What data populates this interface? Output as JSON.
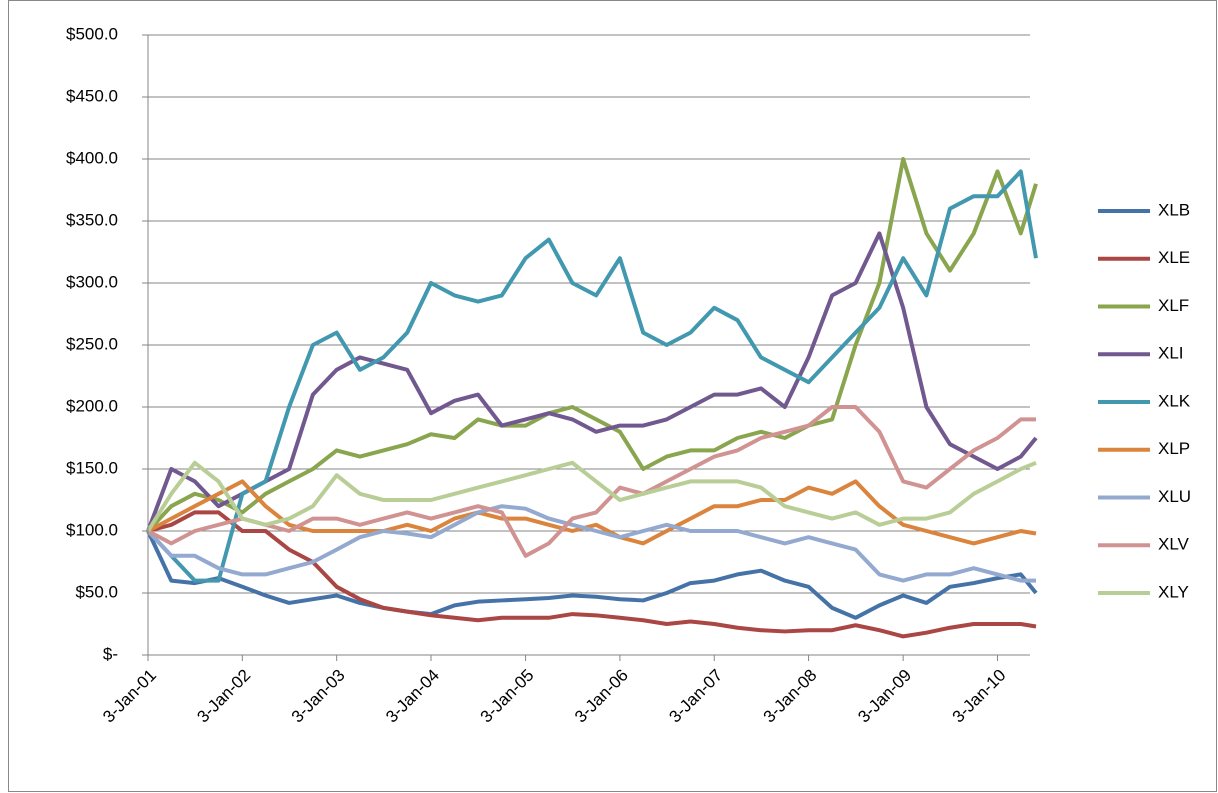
{
  "chart_data": {
    "type": "line",
    "x": [
      "2001-01-03",
      "2001-04-03",
      "2001-07-03",
      "2001-10-03",
      "2002-01-03",
      "2002-04-03",
      "2002-07-03",
      "2002-10-03",
      "2003-01-03",
      "2003-04-03",
      "2003-07-03",
      "2003-10-03",
      "2004-01-03",
      "2004-04-03",
      "2004-07-03",
      "2004-10-03",
      "2005-01-03",
      "2005-04-03",
      "2005-07-03",
      "2005-10-03",
      "2006-01-03",
      "2006-04-03",
      "2006-07-03",
      "2006-10-03",
      "2007-01-03",
      "2007-04-03",
      "2007-07-03",
      "2007-10-03",
      "2008-01-03",
      "2008-04-03",
      "2008-07-03",
      "2008-10-03",
      "2009-01-03",
      "2009-04-03",
      "2009-07-03",
      "2009-10-03",
      "2010-01-03",
      "2010-04-03",
      "2010-06-01"
    ],
    "xlim": [
      "2001-01-03",
      "2010-06-01"
    ],
    "xticks": [
      {
        "value": "2001-01-03",
        "label": "3-Jan-01"
      },
      {
        "value": "2002-01-03",
        "label": "3-Jan-02"
      },
      {
        "value": "2003-01-03",
        "label": "3-Jan-03"
      },
      {
        "value": "2004-01-03",
        "label": "3-Jan-04"
      },
      {
        "value": "2005-01-03",
        "label": "3-Jan-05"
      },
      {
        "value": "2006-01-03",
        "label": "3-Jan-06"
      },
      {
        "value": "2007-01-03",
        "label": "3-Jan-07"
      },
      {
        "value": "2008-01-03",
        "label": "3-Jan-08"
      },
      {
        "value": "2009-01-03",
        "label": "3-Jan-09"
      },
      {
        "value": "2010-01-03",
        "label": "3-Jan-10"
      }
    ],
    "ylim": [
      0,
      500
    ],
    "yticks": [
      {
        "value": 0,
        "label": "$-"
      },
      {
        "value": 50,
        "label": "$50.0"
      },
      {
        "value": 100,
        "label": "$100.0"
      },
      {
        "value": 150,
        "label": "$150.0"
      },
      {
        "value": 200,
        "label": "$200.0"
      },
      {
        "value": 250,
        "label": "$250.0"
      },
      {
        "value": 300,
        "label": "$300.0"
      },
      {
        "value": 350,
        "label": "$350.0"
      },
      {
        "value": 400,
        "label": "$400.0"
      },
      {
        "value": 450,
        "label": "$450.0"
      },
      {
        "value": 500,
        "label": "$500.0"
      }
    ],
    "grid": true,
    "legend": "right",
    "series": [
      {
        "name": "XLB",
        "color": "#4572a7",
        "values": [
          100,
          60,
          58,
          62,
          55,
          48,
          42,
          45,
          48,
          42,
          38,
          35,
          33,
          40,
          43,
          44,
          45,
          46,
          48,
          47,
          45,
          44,
          50,
          58,
          60,
          65,
          68,
          60,
          55,
          38,
          30,
          40,
          48,
          42,
          55,
          58,
          62,
          65,
          50
        ]
      },
      {
        "name": "XLE",
        "color": "#aa4643",
        "values": [
          100,
          105,
          115,
          115,
          100,
          100,
          85,
          75,
          55,
          45,
          38,
          35,
          32,
          30,
          28,
          30,
          30,
          30,
          33,
          32,
          30,
          28,
          25,
          27,
          25,
          22,
          20,
          19,
          20,
          20,
          24,
          20,
          15,
          18,
          22,
          25,
          25,
          25,
          23
        ]
      },
      {
        "name": "XLF",
        "color": "#89a54e",
        "values": [
          100,
          120,
          130,
          125,
          115,
          130,
          140,
          150,
          165,
          160,
          165,
          170,
          178,
          175,
          190,
          185,
          185,
          195,
          200,
          190,
          180,
          150,
          160,
          165,
          165,
          175,
          180,
          175,
          185,
          190,
          250,
          300,
          400,
          340,
          310,
          340,
          390,
          340,
          380
        ]
      },
      {
        "name": "XLI",
        "color": "#71588f",
        "values": [
          100,
          150,
          140,
          120,
          130,
          140,
          150,
          210,
          230,
          240,
          235,
          230,
          195,
          205,
          210,
          185,
          190,
          195,
          190,
          180,
          185,
          185,
          190,
          200,
          210,
          210,
          215,
          200,
          240,
          290,
          300,
          340,
          280,
          200,
          170,
          160,
          150,
          160,
          175
        ]
      },
      {
        "name": "XLK",
        "color": "#4198af",
        "values": [
          100,
          80,
          60,
          60,
          130,
          140,
          200,
          250,
          260,
          230,
          240,
          260,
          300,
          290,
          285,
          290,
          320,
          335,
          300,
          290,
          320,
          260,
          250,
          260,
          280,
          270,
          240,
          230,
          220,
          240,
          260,
          280,
          320,
          290,
          360,
          370,
          370,
          390,
          320
        ]
      },
      {
        "name": "XLP",
        "color": "#db843d",
        "values": [
          100,
          110,
          120,
          130,
          140,
          120,
          105,
          100,
          100,
          100,
          100,
          105,
          100,
          110,
          115,
          110,
          110,
          105,
          100,
          105,
          95,
          90,
          100,
          110,
          120,
          120,
          125,
          125,
          135,
          130,
          140,
          120,
          105,
          100,
          95,
          90,
          95,
          100,
          98
        ]
      },
      {
        "name": "XLU",
        "color": "#93a9cf",
        "values": [
          100,
          80,
          80,
          70,
          65,
          65,
          70,
          75,
          85,
          95,
          100,
          98,
          95,
          105,
          115,
          120,
          118,
          110,
          105,
          100,
          95,
          100,
          105,
          100,
          100,
          100,
          95,
          90,
          95,
          90,
          85,
          65,
          60,
          65,
          65,
          70,
          65,
          60,
          60
        ]
      },
      {
        "name": "XLV",
        "color": "#d19392",
        "values": [
          100,
          90,
          100,
          105,
          110,
          105,
          100,
          110,
          110,
          105,
          110,
          115,
          110,
          115,
          120,
          115,
          80,
          90,
          110,
          115,
          135,
          130,
          140,
          150,
          160,
          165,
          175,
          180,
          185,
          200,
          200,
          180,
          140,
          135,
          150,
          165,
          175,
          190,
          190
        ]
      },
      {
        "name": "XLY",
        "color": "#b9cd96",
        "values": [
          100,
          130,
          155,
          140,
          110,
          105,
          110,
          120,
          145,
          130,
          125,
          125,
          125,
          130,
          135,
          140,
          145,
          150,
          155,
          140,
          125,
          130,
          135,
          140,
          140,
          140,
          135,
          120,
          115,
          110,
          115,
          105,
          110,
          110,
          115,
          130,
          140,
          150,
          155
        ]
      }
    ]
  }
}
